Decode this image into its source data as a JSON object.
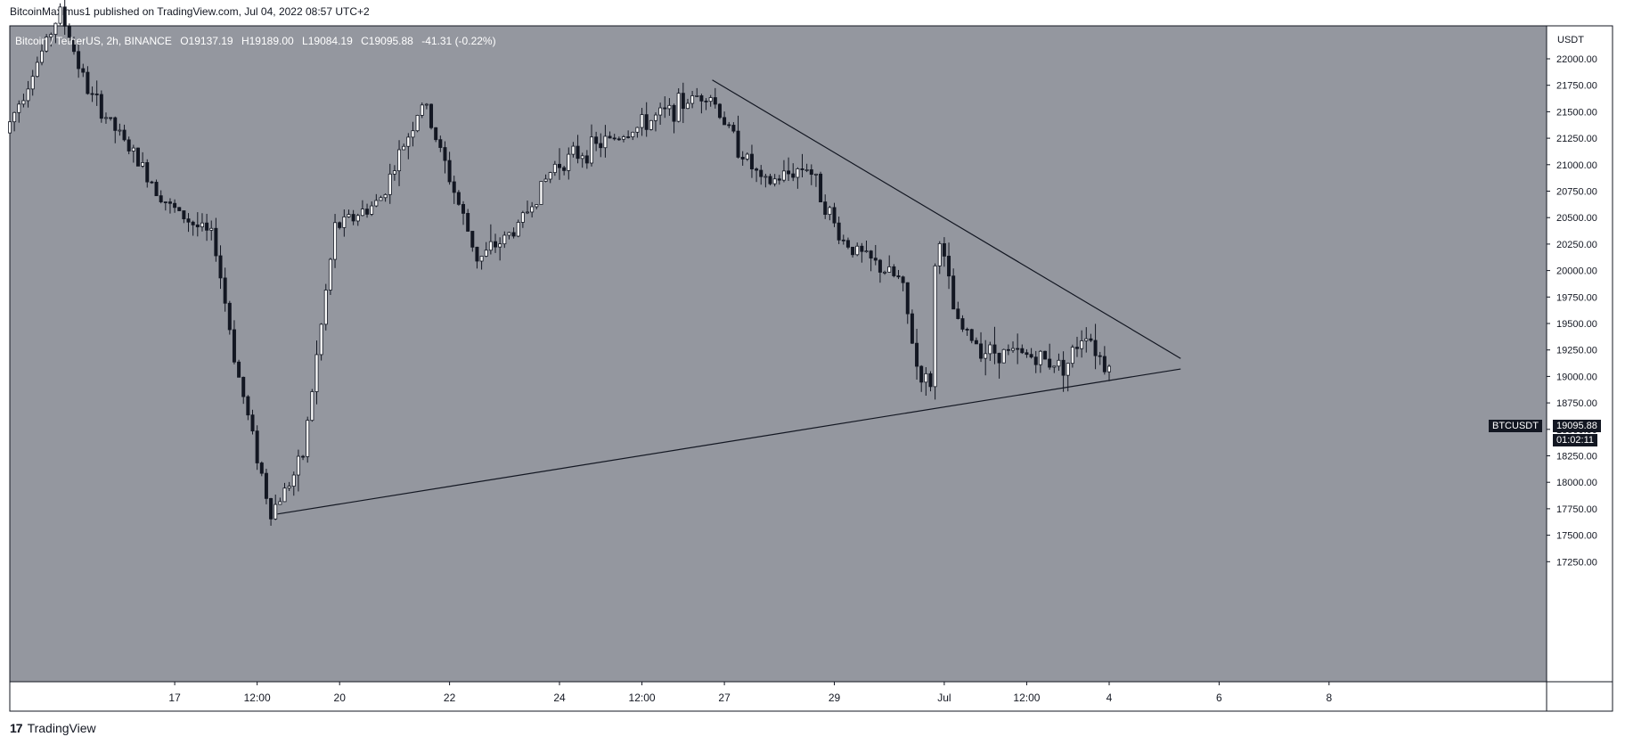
{
  "header": {
    "published_text": "BitcoinMaximus1 published on TradingView.com, Jul 04, 2022 08:57 UTC+2"
  },
  "legend": {
    "symbol": "Bitcoin / TetherUS, 2h, BINANCE",
    "open_key": "O",
    "open": "19137.19",
    "high_key": "H",
    "high": "19189.00",
    "low_key": "L",
    "low": "19084.19",
    "close_key": "C",
    "close": "19095.88",
    "change": "-41.31 (-0.22%)"
  },
  "price_axis": {
    "currency": "USDT"
  },
  "last_price": {
    "ticker": "BTCUSDT",
    "value": "19095.88",
    "countdown": "01:02:11"
  },
  "footer": {
    "logo_glyph": "17",
    "brand": "TradingView"
  },
  "colors": {
    "plot_bg": "#94979f",
    "candle_up": "#ffffff",
    "candle_down": "#131722",
    "wick": "#131722",
    "trendline": "#131722",
    "axis_text": "#131722"
  },
  "chart_data": {
    "type": "candlestick",
    "title": "",
    "xlabel": "",
    "ylabel": "",
    "timeframe": "2h",
    "ylim": [
      17000,
      22500
    ],
    "yticks": [
      17250,
      17500,
      17750,
      18000,
      18250,
      18500,
      18750,
      19000,
      19250,
      19500,
      19750,
      20000,
      20250,
      20500,
      20750,
      21000,
      21250,
      21500,
      21750,
      22000
    ],
    "ytick_labels": [
      "17250.00",
      "17500.00",
      "17750.00",
      "18000.00",
      "18250.00",
      "18500.00",
      "18750.00",
      "19000.00",
      "19250.00",
      "19500.00",
      "19750.00",
      "20000.00",
      "20250.00",
      "20500.00",
      "20750.00",
      "21000.00",
      "21250.00",
      "21500.00",
      "21750.00",
      "22000.00"
    ],
    "xticks": [
      {
        "label": "17",
        "t": 3.0
      },
      {
        "label": "12:00",
        "t": 4.5
      },
      {
        "label": "20",
        "t": 6.0
      },
      {
        "label": "22",
        "t": 8.0
      },
      {
        "label": "24",
        "t": 10.0
      },
      {
        "label": "12:00",
        "t": 11.5
      },
      {
        "label": "27",
        "t": 13.0
      },
      {
        "label": "29",
        "t": 15.0
      },
      {
        "label": "Jul",
        "t": 17.0
      },
      {
        "label": "12:00",
        "t": 18.5
      },
      {
        "label": "4",
        "t": 20.0
      },
      {
        "label": "6",
        "t": 22.0
      },
      {
        "label": "8",
        "t": 24.0
      }
    ],
    "x_axis_unit": "days since Jun 14, 2022 00:00",
    "grid": false,
    "trendlines": [
      {
        "name": "",
        "points": [
          [
            4.87,
            17700
          ],
          [
            21.3,
            19070
          ]
        ]
      },
      {
        "name": "",
        "points": [
          [
            12.78,
            21800
          ],
          [
            21.3,
            19170
          ]
        ]
      }
    ],
    "key_points": [
      {
        "t": 0.0,
        "price": 21300
      },
      {
        "t": 1.0,
        "price": 22450
      },
      {
        "t": 1.5,
        "price": 21700
      },
      {
        "t": 3.0,
        "price": 20600
      },
      {
        "t": 3.8,
        "price": 20300
      },
      {
        "t": 4.2,
        "price": 19100
      },
      {
        "t": 4.83,
        "price": 17708
      },
      {
        "t": 5.4,
        "price": 18200
      },
      {
        "t": 6.0,
        "price": 20400
      },
      {
        "t": 6.8,
        "price": 20650
      },
      {
        "t": 7.6,
        "price": 21600
      },
      {
        "t": 8.6,
        "price": 20100
      },
      {
        "t": 9.3,
        "price": 20400
      },
      {
        "t": 10.0,
        "price": 21000
      },
      {
        "t": 11.5,
        "price": 21350
      },
      {
        "t": 12.78,
        "price": 21700
      },
      {
        "t": 13.3,
        "price": 21200
      },
      {
        "t": 13.8,
        "price": 20800
      },
      {
        "t": 14.6,
        "price": 21000
      },
      {
        "t": 15.2,
        "price": 20300
      },
      {
        "t": 15.7,
        "price": 20100
      },
      {
        "t": 16.3,
        "price": 19900
      },
      {
        "t": 16.6,
        "price": 19050
      },
      {
        "t": 16.83,
        "price": 18900
      },
      {
        "t": 16.95,
        "price": 20450
      },
      {
        "t": 17.3,
        "price": 19500
      },
      {
        "t": 17.8,
        "price": 19250
      },
      {
        "t": 18.6,
        "price": 19200
      },
      {
        "t": 19.3,
        "price": 19100
      },
      {
        "t": 19.65,
        "price": 19450
      },
      {
        "t": 20.0,
        "price": 19100
      }
    ],
    "last_close": 19095.88
  }
}
